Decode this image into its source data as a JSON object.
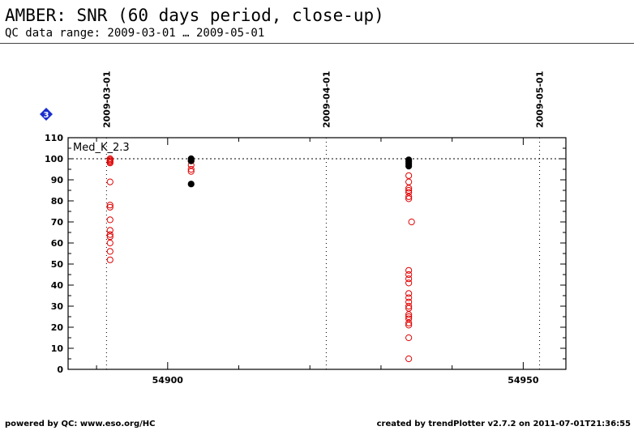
{
  "header": {
    "title": "AMBER: SNR (60 days period, close-up)",
    "subtitle": "QC data range: 2009-03-01 … 2009-05-01"
  },
  "footer": {
    "left": "powered by QC: www.eso.org/HC",
    "right": "created by trendPlotter v2.7.2 on 2011-07-01T21:36:55"
  },
  "badge": {
    "label": "3",
    "color": "#1a2ecc"
  },
  "chart_data": {
    "type": "scatter",
    "title": "Med_K_2.3",
    "xlim": [
      54886,
      54956
    ],
    "ylim": [
      0,
      110
    ],
    "y_ticks": [
      0,
      10,
      20,
      30,
      40,
      50,
      60,
      70,
      80,
      90,
      100,
      110
    ],
    "x_ticks": [
      {
        "value": 54900,
        "label": "54900"
      },
      {
        "value": 54950,
        "label": "54950"
      }
    ],
    "x_minor_ticks": [
      54890,
      54910,
      54920,
      54930,
      54940
    ],
    "reference_line": 100,
    "date_markers": [
      {
        "value": 54891.4,
        "label": "2009-03-01"
      },
      {
        "value": 54922.3,
        "label": "2009-04-01"
      },
      {
        "value": 54952.3,
        "label": "2009-05-01"
      }
    ],
    "colors": {
      "open": "#e00000",
      "filled": "#000000",
      "reference": "#000000"
    },
    "series": [
      {
        "style": "open",
        "points": [
          [
            54891.9,
            100
          ],
          [
            54891.9,
            99.5
          ],
          [
            54891.9,
            99
          ],
          [
            54891.9,
            98.5
          ],
          [
            54891.9,
            98
          ],
          [
            54891.9,
            89
          ],
          [
            54891.9,
            78
          ],
          [
            54891.9,
            77
          ],
          [
            54891.9,
            71
          ],
          [
            54891.9,
            66
          ],
          [
            54891.9,
            64
          ],
          [
            54891.9,
            63
          ],
          [
            54891.9,
            60
          ],
          [
            54891.9,
            56
          ],
          [
            54891.9,
            52
          ],
          [
            54903.3,
            99
          ],
          [
            54903.3,
            97
          ],
          [
            54903.3,
            95
          ],
          [
            54903.3,
            94
          ],
          [
            54933.9,
            92
          ],
          [
            54933.9,
            89
          ],
          [
            54933.9,
            86
          ],
          [
            54933.9,
            85
          ],
          [
            54933.9,
            84
          ],
          [
            54933.9,
            82
          ],
          [
            54933.9,
            81
          ],
          [
            54934.3,
            70
          ],
          [
            54933.9,
            47
          ],
          [
            54933.9,
            45
          ],
          [
            54933.9,
            43
          ],
          [
            54933.9,
            41
          ],
          [
            54933.9,
            36
          ],
          [
            54933.9,
            34
          ],
          [
            54933.9,
            32
          ],
          [
            54933.9,
            30
          ],
          [
            54933.9,
            29
          ],
          [
            54933.9,
            26
          ],
          [
            54933.9,
            25
          ],
          [
            54933.9,
            24
          ],
          [
            54933.9,
            22
          ],
          [
            54933.9,
            21
          ],
          [
            54933.9,
            15
          ],
          [
            54933.9,
            5
          ]
        ]
      },
      {
        "style": "filled",
        "points": [
          [
            54903.3,
            100
          ],
          [
            54903.3,
            99
          ],
          [
            54903.3,
            88
          ],
          [
            54933.9,
            99.5
          ],
          [
            54933.9,
            98.5
          ],
          [
            54933.9,
            97.5
          ],
          [
            54933.9,
            96.5
          ]
        ]
      }
    ]
  }
}
